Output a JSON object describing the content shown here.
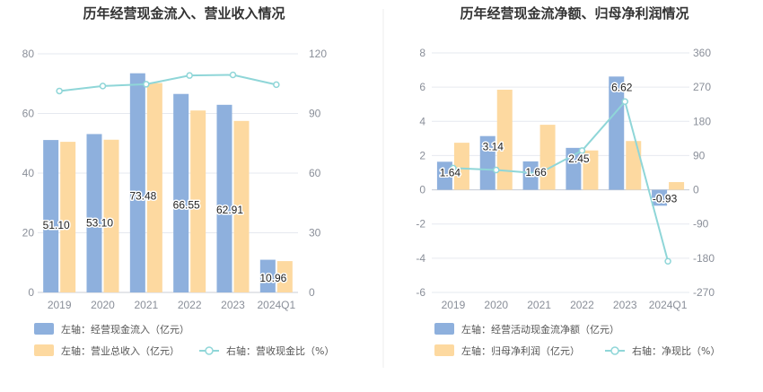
{
  "chart_data": [
    {
      "type": "bar",
      "title": "历年经营现金流入、营业收入情况",
      "categories": [
        "2019",
        "2020",
        "2021",
        "2022",
        "2023",
        "2024Q1"
      ],
      "left_axis": {
        "min": 0,
        "max": 80,
        "ticks": [
          "0",
          "20",
          "40",
          "60",
          "80"
        ]
      },
      "right_axis": {
        "min": 0,
        "max": 120,
        "ticks": [
          "0",
          "30",
          "60",
          "90",
          "120"
        ]
      },
      "series": [
        {
          "name": "左轴：经营现金流入（亿元）",
          "type": "bar",
          "axis": "left",
          "color": "#8eb0dd",
          "values": [
            51.1,
            53.1,
            73.48,
            66.55,
            62.91,
            10.96
          ],
          "labels": [
            "51.10",
            "53.10",
            "73.48",
            "66.55",
            "62.91",
            "10.96"
          ]
        },
        {
          "name": "左轴：营业总收入（亿元）",
          "type": "bar",
          "axis": "left",
          "color": "#fdd9a0",
          "values": [
            50.5,
            51.2,
            70.2,
            61.0,
            57.5,
            10.5
          ]
        },
        {
          "name": "右轴：营收现金比（%）",
          "type": "line",
          "axis": "right",
          "color": "#8fd6d8",
          "values": [
            101.3,
            103.8,
            104.7,
            109.1,
            109.4,
            104.5
          ]
        }
      ],
      "legend_placement": "bottom-left"
    },
    {
      "type": "bar",
      "title": "历年经营现金流净额、归母净利润情况",
      "categories": [
        "2019",
        "2020",
        "2021",
        "2022",
        "2023",
        "2024Q1"
      ],
      "left_axis": {
        "min": -6,
        "max": 8,
        "ticks": [
          "-6",
          "-4",
          "-2",
          "0",
          "2",
          "4",
          "6",
          "8"
        ]
      },
      "right_axis": {
        "min": -270,
        "max": 360,
        "ticks": [
          "-270",
          "-180",
          "-90",
          "0",
          "90",
          "180",
          "270",
          "360"
        ]
      },
      "series": [
        {
          "name": "左轴：经营活动现金流净额（亿元）",
          "type": "bar",
          "axis": "left",
          "color": "#8eb0dd",
          "values": [
            1.64,
            3.14,
            1.66,
            2.45,
            6.62,
            -0.93
          ],
          "labels": [
            "1.64",
            "3.14",
            "1.66",
            "2.45",
            "6.62",
            "-0.93"
          ]
        },
        {
          "name": "左轴：归母净利润（亿元）",
          "type": "bar",
          "axis": "left",
          "color": "#fdd9a0",
          "values": [
            2.75,
            5.85,
            3.8,
            2.3,
            2.85,
            0.45
          ]
        },
        {
          "name": "右轴：净现比（%）",
          "type": "line",
          "axis": "right",
          "color": "#8fd6d8",
          "values": [
            57,
            52,
            43,
            103,
            232,
            -188
          ]
        }
      ],
      "legend_placement": "bottom-left"
    }
  ]
}
